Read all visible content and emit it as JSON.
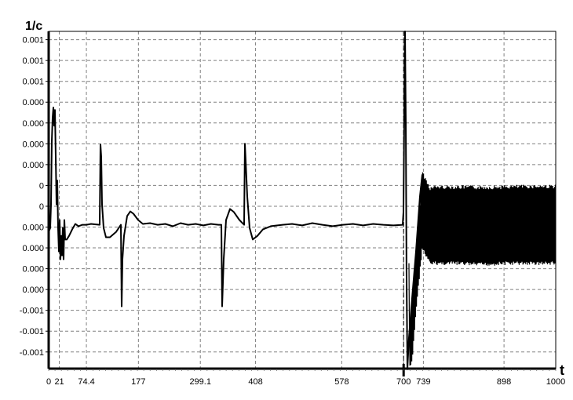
{
  "chart_data": {
    "type": "line",
    "title": "",
    "xlabel": "t",
    "ylabel": "1/c",
    "xlim": [
      0,
      1000
    ],
    "ylim": [
      -0.00088,
      0.00074
    ],
    "grid": true,
    "legend": "none",
    "line_color": "#000000",
    "grid_color": "#808080",
    "x_ticks": [
      {
        "value": 0,
        "label": "0"
      },
      {
        "value": 21,
        "label": "21"
      },
      {
        "value": 74.4,
        "label": "74.4"
      },
      {
        "value": 177,
        "label": "177"
      },
      {
        "value": 299.1,
        "label": "299.1"
      },
      {
        "value": 408,
        "label": "408"
      },
      {
        "value": 578,
        "label": "578"
      },
      {
        "value": 700,
        "label": "700"
      },
      {
        "value": 739,
        "label": "739"
      },
      {
        "value": 898,
        "label": "898"
      },
      {
        "value": 1000,
        "label": "1000"
      }
    ],
    "y_ticks": [
      {
        "value": 0.0007,
        "label": "0.001"
      },
      {
        "value": 0.0006,
        "label": "0.001"
      },
      {
        "value": 0.0005,
        "label": "0.001"
      },
      {
        "value": 0.0004,
        "label": "0.000"
      },
      {
        "value": 0.0003,
        "label": "0.000"
      },
      {
        "value": 0.0002,
        "label": "0.000"
      },
      {
        "value": 0.0001,
        "label": "0.000"
      },
      {
        "value": 0.0,
        "label": "0"
      },
      {
        "value": -0.0001,
        "label": "0"
      },
      {
        "value": -0.0002,
        "label": "0.000"
      },
      {
        "value": -0.0003,
        "label": "0.000"
      },
      {
        "value": -0.0004,
        "label": "0.000"
      },
      {
        "value": -0.0005,
        "label": "0.000"
      },
      {
        "value": -0.0006,
        "label": "-0.001"
      },
      {
        "value": -0.0007,
        "label": "-0.001"
      },
      {
        "value": -0.0008,
        "label": "-0.001"
      }
    ],
    "marker_line_x": 700,
    "series": [
      {
        "points": [
          [
            0,
            -0.000223
          ],
          [
            3.1,
            -0.000204
          ],
          [
            4.6,
            -9.1e-05
          ],
          [
            6.2,
            0.000211
          ],
          [
            7.7,
            0.000325
          ],
          [
            9.3,
            0.000374
          ],
          [
            10.8,
            0.000287
          ],
          [
            12.4,
            0.000362
          ],
          [
            13.9,
            0.000136
          ],
          [
            15.5,
            -9.1e-05
          ],
          [
            17,
            2.3e-05
          ],
          [
            18.6,
            -0.000204
          ],
          [
            20.1,
            -0.000317
          ],
          [
            21.7,
            -0.000166
          ],
          [
            23.2,
            -0.000355
          ],
          [
            24.8,
            -0.000242
          ],
          [
            26.3,
            -0.000336
          ],
          [
            27.9,
            -0.000204
          ],
          [
            29.4,
            -0.000355
          ],
          [
            31,
            -0.000166
          ],
          [
            32.5,
            -0.00026
          ],
          [
            35.6,
            -0.00026
          ],
          [
            40.2,
            -0.000242
          ],
          [
            46.4,
            -0.000211
          ],
          [
            52.6,
            -0.000185
          ],
          [
            58.8,
            -0.000196
          ],
          [
            66.6,
            -0.000189
          ],
          [
            74.3,
            -0.000189
          ],
          [
            83.6,
            -0.000185
          ],
          [
            100.6,
            -0.000189
          ],
          [
            102.2,
            0.000196
          ],
          [
            103.7,
            0.000136
          ],
          [
            105.3,
            -9.1e-05
          ],
          [
            108.4,
            -0.000204
          ],
          [
            113,
            -0.000249
          ],
          [
            120.7,
            -0.000249
          ],
          [
            133.1,
            -0.000223
          ],
          [
            142.4,
            -0.000189
          ],
          [
            144,
            -0.000581
          ],
          [
            145.5,
            -0.000355
          ],
          [
            148.6,
            -0.000242
          ],
          [
            154.8,
            -0.000147
          ],
          [
            161,
            -0.000125
          ],
          [
            167.2,
            -0.000136
          ],
          [
            176.5,
            -0.000166
          ],
          [
            185.8,
            -0.000185
          ],
          [
            200,
            -0.000181
          ],
          [
            215,
            -0.000189
          ],
          [
            230,
            -0.000185
          ],
          [
            245,
            -0.000196
          ],
          [
            260,
            -0.000181
          ],
          [
            275,
            -0.000189
          ],
          [
            290,
            -0.000185
          ],
          [
            305,
            -0.000192
          ],
          [
            320,
            -0.000185
          ],
          [
            335,
            -0.000189
          ],
          [
            340.6,
            -0.000189
          ],
          [
            342.1,
            -0.000581
          ],
          [
            345.2,
            -0.000355
          ],
          [
            349.8,
            -0.000166
          ],
          [
            357.6,
            -0.000113
          ],
          [
            365.3,
            -0.000128
          ],
          [
            376.2,
            -0.000166
          ],
          [
            385.4,
            -0.000189
          ],
          [
            387,
            0.0002
          ],
          [
            388.5,
            0.000117
          ],
          [
            391.6,
            -5.3e-05
          ],
          [
            396.3,
            -0.000204
          ],
          [
            402.5,
            -0.00026
          ],
          [
            411.8,
            -0.000242
          ],
          [
            422.6,
            -0.000211
          ],
          [
            438.1,
            -0.000196
          ],
          [
            461.3,
            -0.000189
          ],
          [
            480,
            -0.000185
          ],
          [
            500,
            -0.000192
          ],
          [
            520,
            -0.000181
          ],
          [
            540,
            -0.000189
          ],
          [
            560,
            -0.000196
          ],
          [
            580,
            -0.000189
          ],
          [
            600,
            -0.000185
          ],
          [
            620,
            -0.000192
          ],
          [
            640,
            -0.000185
          ],
          [
            660,
            -0.000189
          ],
          [
            680,
            -0.000192
          ],
          [
            698.1,
            -0.000189
          ],
          [
            699.7,
            -0.000128
          ],
          [
            701.2,
            0.000325
          ],
          [
            702.8,
            0.00074
          ],
          [
            704.3,
            0.0003
          ],
          [
            705.8,
            -0.0004
          ],
          [
            707.4,
            -0.000883
          ],
          [
            710.5,
            -0.000732
          ],
          [
            716.7,
            -0.000543
          ],
          [
            724.5,
            -0.000317
          ],
          [
            732.2,
            -5.3e-05
          ],
          [
            736.8,
            5.3e-05
          ]
        ],
        "oscillation_envelope": {
          "x": [
            710.5,
            716.7,
            724.5,
            736.8,
            743,
            752.3,
            763.2,
            800,
            850,
            900,
            950,
            1000
          ],
          "upper": [
            -0.000732,
            -0.000543,
            -0.000317,
            6.8e-05,
            3e-05,
            -1.5e-05,
            -8e-06,
            -8e-06,
            -1e-05,
            -8e-06,
            -5e-06,
            -5e-06
          ],
          "lower": [
            -0.000883,
            -0.00085,
            -0.0006,
            -0.000298,
            -0.000336,
            -0.000374,
            -0.000374,
            -0.000374,
            -0.00038,
            -0.000374,
            -0.000374,
            -0.000374
          ]
        }
      }
    ]
  }
}
